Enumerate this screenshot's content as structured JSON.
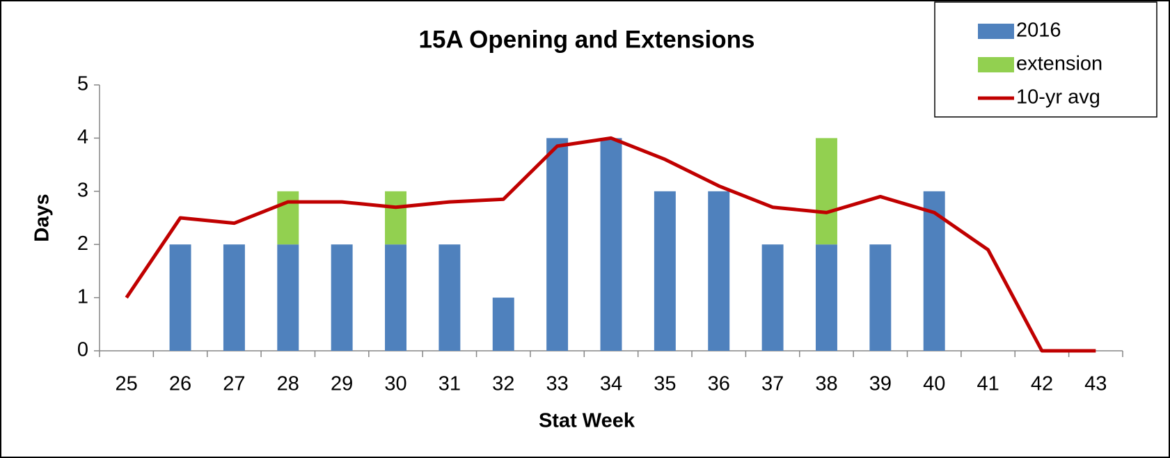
{
  "chart_data": {
    "type": "bar",
    "stacked": true,
    "title": "15A Opening and Extensions",
    "x_label": "Stat Week",
    "y_label": "Days",
    "categories": [
      "25",
      "26",
      "27",
      "28",
      "29",
      "30",
      "31",
      "32",
      "33",
      "34",
      "35",
      "36",
      "37",
      "38",
      "39",
      "40",
      "41",
      "42",
      "43"
    ],
    "series": [
      {
        "name": "2016",
        "type": "bar",
        "color": "#4f81bd",
        "values": [
          0,
          2,
          2,
          2,
          2,
          2,
          2,
          1,
          4,
          4,
          3,
          3,
          2,
          2,
          2,
          3,
          0,
          0,
          0
        ]
      },
      {
        "name": "extension",
        "type": "bar",
        "color": "#92d050",
        "values": [
          0,
          0,
          0,
          1,
          0,
          1,
          0,
          0,
          0,
          0,
          0,
          0,
          0,
          2,
          0,
          0,
          0,
          0,
          0
        ]
      },
      {
        "name": "10-yr avg",
        "type": "line",
        "color": "#c00000",
        "values": [
          1,
          2.5,
          2.4,
          2.8,
          2.8,
          2.7,
          2.8,
          2.85,
          3.85,
          4.0,
          3.6,
          3.1,
          2.7,
          2.6,
          2.9,
          2.6,
          1.9,
          0,
          0
        ]
      }
    ],
    "ylim": [
      0,
      5
    ],
    "yticks": [
      0,
      1,
      2,
      3,
      4,
      5
    ],
    "grid": false,
    "legend": "top-right"
  }
}
